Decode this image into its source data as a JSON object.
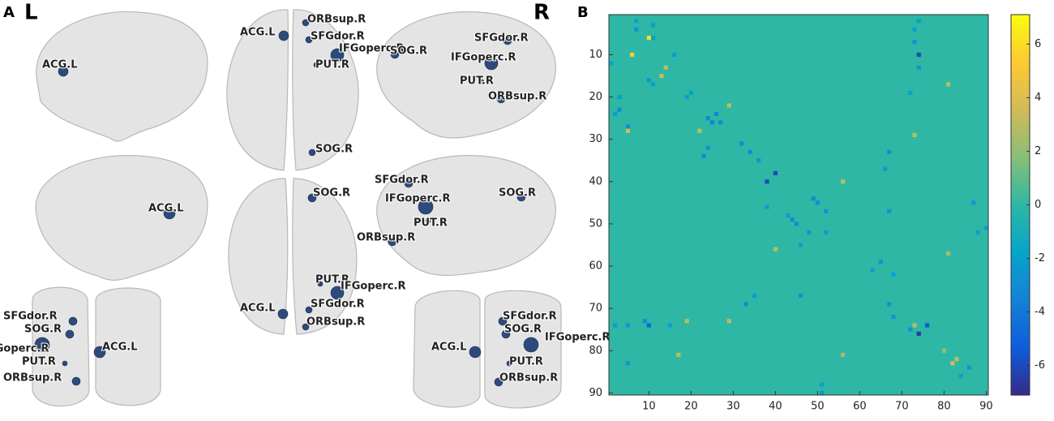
{
  "panel_a": {
    "label": "A",
    "left": "L",
    "right": "R",
    "views": [
      {
        "nodes": [
          "ACG.L"
        ]
      },
      {
        "nodes": [
          "ACG.L",
          "ORBsup.R",
          "SFGdor.R",
          "IFGoperc.R",
          "PUT.R",
          "SOG.R"
        ]
      },
      {
        "nodes": [
          "SFGdor.R",
          "SOG.R",
          "IFGoperc.R",
          "PUT.R",
          "ORBsup.R"
        ]
      },
      {
        "nodes": [
          "ACG.L"
        ]
      },
      {
        "nodes": [
          "SOG.R",
          "PUT.R",
          "IFGoperc.R",
          "ACG.L",
          "SFGdor.R",
          "ORBsup.R"
        ]
      },
      {
        "nodes": [
          "SFGdor.R",
          "SOG.R",
          "IFGoperc.R",
          "PUT.R",
          "ORBsup.R"
        ]
      },
      {
        "nodes": [
          "SFGdor.R",
          "SOG.R",
          "IFGoperc.R",
          "ACG.L",
          "PUT.R",
          "ORBsup.R"
        ]
      },
      {
        "nodes": [
          "SFGdor.R",
          "SOG.R",
          "IFGoperc.R",
          "ACG.L",
          "PUT.R",
          "ORBsup.R"
        ]
      }
    ]
  },
  "chart_data": {
    "type": "heatmap",
    "panel": "B",
    "colormap": "parula",
    "xlim": [
      0.5,
      90.5
    ],
    "ylim": [
      0.5,
      90.5
    ],
    "xticks": [
      10,
      20,
      30,
      40,
      50,
      60,
      70,
      80,
      90
    ],
    "yticks": [
      10,
      20,
      30,
      40,
      50,
      60,
      70,
      80,
      90
    ],
    "clim": [
      -7.1,
      7.1
    ],
    "cticks": [
      -6,
      -4,
      -2,
      0,
      2,
      4,
      6
    ],
    "cells": [
      {
        "row": 6,
        "col": 10,
        "value": 6
      },
      {
        "row": 10,
        "col": 6,
        "value": 5.5
      },
      {
        "row": 2,
        "col": 7,
        "value": -2
      },
      {
        "row": 4,
        "col": 7,
        "value": -2.5
      },
      {
        "row": 3,
        "col": 11,
        "value": -2
      },
      {
        "row": 6,
        "col": 11,
        "value": -2
      },
      {
        "row": 12,
        "col": 1,
        "value": -2
      },
      {
        "row": 10,
        "col": 16,
        "value": -2
      },
      {
        "row": 15,
        "col": 13,
        "value": 3.5
      },
      {
        "row": 13,
        "col": 14,
        "value": 3
      },
      {
        "row": 17,
        "col": 11,
        "value": -2
      },
      {
        "row": 16,
        "col": 10,
        "value": -2.5
      },
      {
        "row": 20,
        "col": 3,
        "value": -2
      },
      {
        "row": 23,
        "col": 3,
        "value": -3
      },
      {
        "row": 24,
        "col": 2,
        "value": -2
      },
      {
        "row": 27,
        "col": 5,
        "value": -3
      },
      {
        "row": 28,
        "col": 5,
        "value": 3.5
      },
      {
        "row": 20,
        "col": 19,
        "value": -2
      },
      {
        "row": 19,
        "col": 20,
        "value": -2
      },
      {
        "row": 22,
        "col": 29,
        "value": 3
      },
      {
        "row": 28,
        "col": 22,
        "value": 3
      },
      {
        "row": 25,
        "col": 24,
        "value": -3
      },
      {
        "row": 26,
        "col": 25,
        "value": -3.5
      },
      {
        "row": 24,
        "col": 26,
        "value": -3
      },
      {
        "row": 26,
        "col": 27,
        "value": -3
      },
      {
        "row": 32,
        "col": 24,
        "value": -2.5
      },
      {
        "row": 34,
        "col": 23,
        "value": -3
      },
      {
        "row": 31,
        "col": 32,
        "value": -3
      },
      {
        "row": 33,
        "col": 34,
        "value": -3
      },
      {
        "row": 35,
        "col": 36,
        "value": -2.5
      },
      {
        "row": 38,
        "col": 40,
        "value": -6
      },
      {
        "row": 40,
        "col": 38,
        "value": -6
      },
      {
        "row": 40,
        "col": 56,
        "value": 3
      },
      {
        "row": 56,
        "col": 40,
        "value": 3
      },
      {
        "row": 10,
        "col": 74,
        "value": -6
      },
      {
        "row": 74,
        "col": 10,
        "value": -5
      },
      {
        "row": 7,
        "col": 73,
        "value": -2.5
      },
      {
        "row": 4,
        "col": 73,
        "value": -2
      },
      {
        "row": 13,
        "col": 74,
        "value": -2.5
      },
      {
        "row": 2,
        "col": 74,
        "value": -2
      },
      {
        "row": 17,
        "col": 81,
        "value": 3
      },
      {
        "row": 81,
        "col": 17,
        "value": 3
      },
      {
        "row": 29,
        "col": 73,
        "value": 3
      },
      {
        "row": 73,
        "col": 29,
        "value": 3
      },
      {
        "row": 19,
        "col": 72,
        "value": -2
      },
      {
        "row": 45,
        "col": 50,
        "value": -3
      },
      {
        "row": 44,
        "col": 49,
        "value": -3
      },
      {
        "row": 50,
        "col": 45,
        "value": -3
      },
      {
        "row": 49,
        "col": 44,
        "value": -3
      },
      {
        "row": 47,
        "col": 52,
        "value": -2.5
      },
      {
        "row": 52,
        "col": 52,
        "value": -2
      },
      {
        "row": 48,
        "col": 43,
        "value": -2
      },
      {
        "row": 46,
        "col": 38,
        "value": -2
      },
      {
        "row": 52,
        "col": 48,
        "value": -2.5
      },
      {
        "row": 55,
        "col": 46,
        "value": -2
      },
      {
        "row": 37,
        "col": 66,
        "value": -2
      },
      {
        "row": 33,
        "col": 67,
        "value": -2.5
      },
      {
        "row": 47,
        "col": 67,
        "value": -2.5
      },
      {
        "row": 61,
        "col": 63,
        "value": -2
      },
      {
        "row": 59,
        "col": 65,
        "value": -2.5
      },
      {
        "row": 62,
        "col": 68,
        "value": -2
      },
      {
        "row": 57,
        "col": 81,
        "value": 2.5
      },
      {
        "row": 67,
        "col": 46,
        "value": -2.5
      },
      {
        "row": 69,
        "col": 33,
        "value": -3
      },
      {
        "row": 67,
        "col": 35,
        "value": -2
      },
      {
        "row": 74,
        "col": 2,
        "value": -2
      },
      {
        "row": 74,
        "col": 5,
        "value": -2.5
      },
      {
        "row": 73,
        "col": 9,
        "value": -3
      },
      {
        "row": 74,
        "col": 15,
        "value": -2
      },
      {
        "row": 73,
        "col": 19,
        "value": 3
      },
      {
        "row": 74,
        "col": 73,
        "value": 3
      },
      {
        "row": 76,
        "col": 74,
        "value": -6.5
      },
      {
        "row": 74,
        "col": 76,
        "value": -5.5
      },
      {
        "row": 75,
        "col": 72,
        "value": -2.5
      },
      {
        "row": 72,
        "col": 68,
        "value": -2.5
      },
      {
        "row": 69,
        "col": 67,
        "value": -2.5
      },
      {
        "row": 81,
        "col": 56,
        "value": 2.5
      },
      {
        "row": 80,
        "col": 80,
        "value": 2
      },
      {
        "row": 82,
        "col": 83,
        "value": 3
      },
      {
        "row": 83,
        "col": 82,
        "value": 3.5
      },
      {
        "row": 84,
        "col": 86,
        "value": -2.5
      },
      {
        "row": 86,
        "col": 84,
        "value": -2
      },
      {
        "row": 88,
        "col": 51,
        "value": -2
      },
      {
        "row": 90,
        "col": 51,
        "value": -2.5
      },
      {
        "row": 52,
        "col": 88,
        "value": -2
      },
      {
        "row": 51,
        "col": 90,
        "value": -2
      },
      {
        "row": 83,
        "col": 5,
        "value": -2.5
      },
      {
        "row": 45,
        "col": 87,
        "value": -2.5
      }
    ]
  }
}
